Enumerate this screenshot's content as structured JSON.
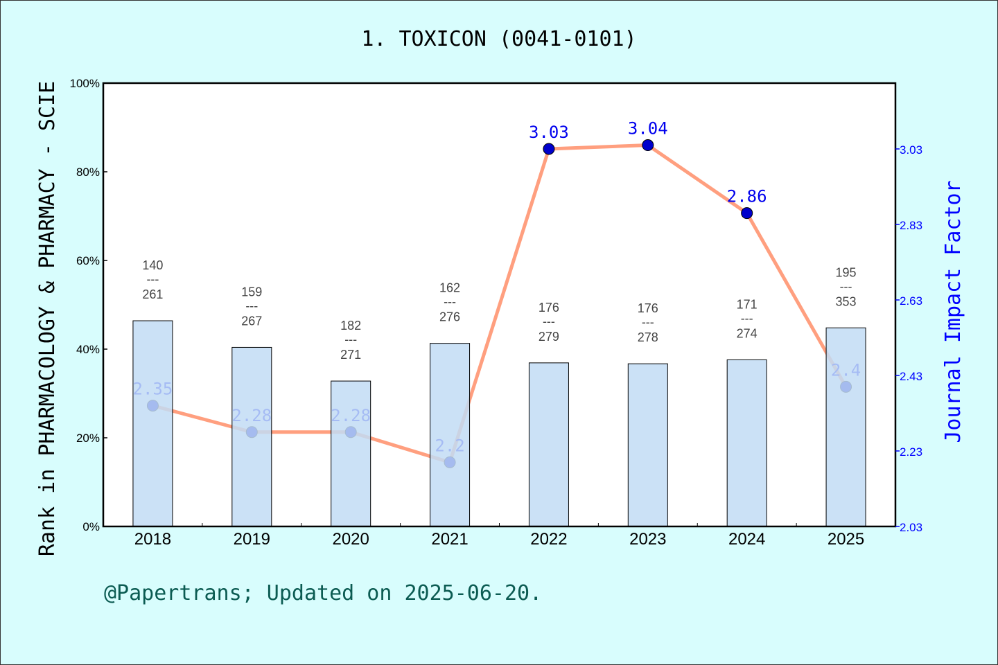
{
  "chart_data": {
    "type": "bar+line",
    "title": "1. TOXICON (0041-0101)",
    "ylabel": "Rank in PHARMACOLOGY & PHARMACY - SCIE",
    "y2label": "Journal Impact Factor",
    "categories": [
      "2018",
      "2019",
      "2020",
      "2021",
      "2022",
      "2023",
      "2024",
      "2025"
    ],
    "ranks": [
      140,
      159,
      182,
      162,
      176,
      176,
      171,
      195
    ],
    "totals": [
      261,
      267,
      271,
      276,
      279,
      278,
      274,
      353
    ],
    "bar_values_percent": [
      46.4,
      40.4,
      32.8,
      41.3,
      36.9,
      36.7,
      37.6,
      44.8
    ],
    "impact_factor": [
      2.35,
      2.28,
      2.28,
      2.2,
      3.03,
      3.04,
      2.86,
      2.4
    ],
    "impact_factor_labels": [
      "2.35",
      "2.28",
      "2.28",
      "2.2",
      "3.03",
      "3.04",
      "2.86",
      "2.4"
    ],
    "ylim": [
      0,
      100
    ],
    "yticks": [
      "0%",
      "20%",
      "40%",
      "60%",
      "80%",
      "100%"
    ],
    "y2lim": [
      2.03,
      3.2
    ],
    "y2ticks": [
      "2.03",
      "2.23",
      "2.43",
      "2.63",
      "2.83",
      "3.03"
    ],
    "grid": false,
    "colors": {
      "bar": "#c2dcf5",
      "line": "#ff9f7f",
      "point": "#0000cc",
      "if_text": "#0000ee",
      "right_axis": "#0000ff",
      "background": "#d8fdfd"
    }
  },
  "footer": "@Papertrans; Updated on 2025-06-20."
}
